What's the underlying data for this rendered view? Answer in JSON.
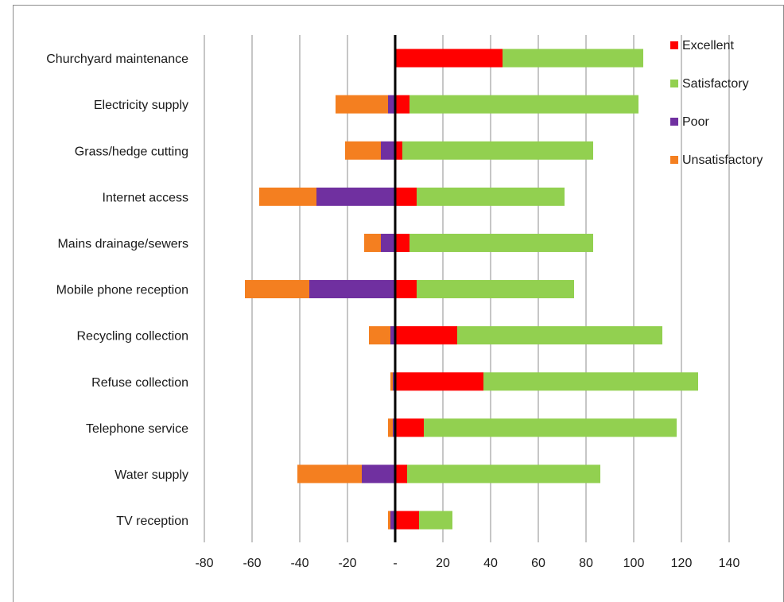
{
  "chart_data": {
    "type": "bar",
    "orientation": "horizontal",
    "stacked": true,
    "diverging": true,
    "categories": [
      "Churchyard maintenance",
      "Electricity supply",
      "Grass/hedge cutting",
      "Internet access",
      "Mains drainage/sewers",
      "Mobile phone reception",
      "Recycling collection",
      "Refuse collection",
      "Telephone service",
      "Water supply",
      "TV reception"
    ],
    "series": [
      {
        "name": "Excellent",
        "color": "#ff0000",
        "values": [
          45,
          6,
          3,
          9,
          6,
          9,
          26,
          37,
          12,
          5,
          10
        ]
      },
      {
        "name": "Satisfactory",
        "color": "#92d050",
        "values": [
          59,
          96,
          80,
          62,
          77,
          66,
          86,
          90,
          106,
          81,
          14
        ]
      },
      {
        "name": "Poor",
        "color": "#7030a0",
        "values": [
          0,
          -3,
          -6,
          -33,
          -6,
          -36,
          -2,
          -1,
          -1,
          -14,
          -2
        ]
      },
      {
        "name": "Unsatisfactory",
        "color": "#f47f20",
        "values": [
          0,
          -22,
          -15,
          -24,
          -7,
          -27,
          -9,
          -1,
          -2,
          -27,
          -1
        ]
      }
    ],
    "xlim": [
      -80,
      140
    ],
    "x_ticks": [
      "-80",
      "-60",
      "-40",
      "-20",
      "-",
      "20",
      "40",
      "60",
      "80",
      "100",
      "120",
      "140"
    ],
    "grid": "vertical",
    "legend": "top-right",
    "title": "",
    "xlabel": "",
    "ylabel": ""
  }
}
